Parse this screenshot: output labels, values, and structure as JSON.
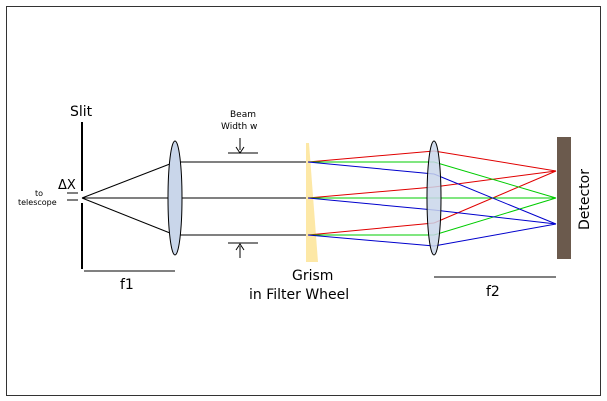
{
  "labels": {
    "slit": "Slit",
    "delta_x": "ΔX",
    "to_line1": "to",
    "to_line2": "telescope",
    "beam_line1": "Beam",
    "beam_line2": "Width w",
    "grism_line1": "Grism",
    "grism_line2": "in Filter Wheel",
    "f1": "f1",
    "f2": "f2",
    "detector": "Detector"
  },
  "colors": {
    "lens_fill": "#c9d6ea",
    "grism_fill": "#fde8a6",
    "detector_fill": "#6b5a4d",
    "ray_red": "#e00000",
    "ray_green": "#00cc00",
    "ray_blue": "#0000cc",
    "line": "#000000"
  }
}
